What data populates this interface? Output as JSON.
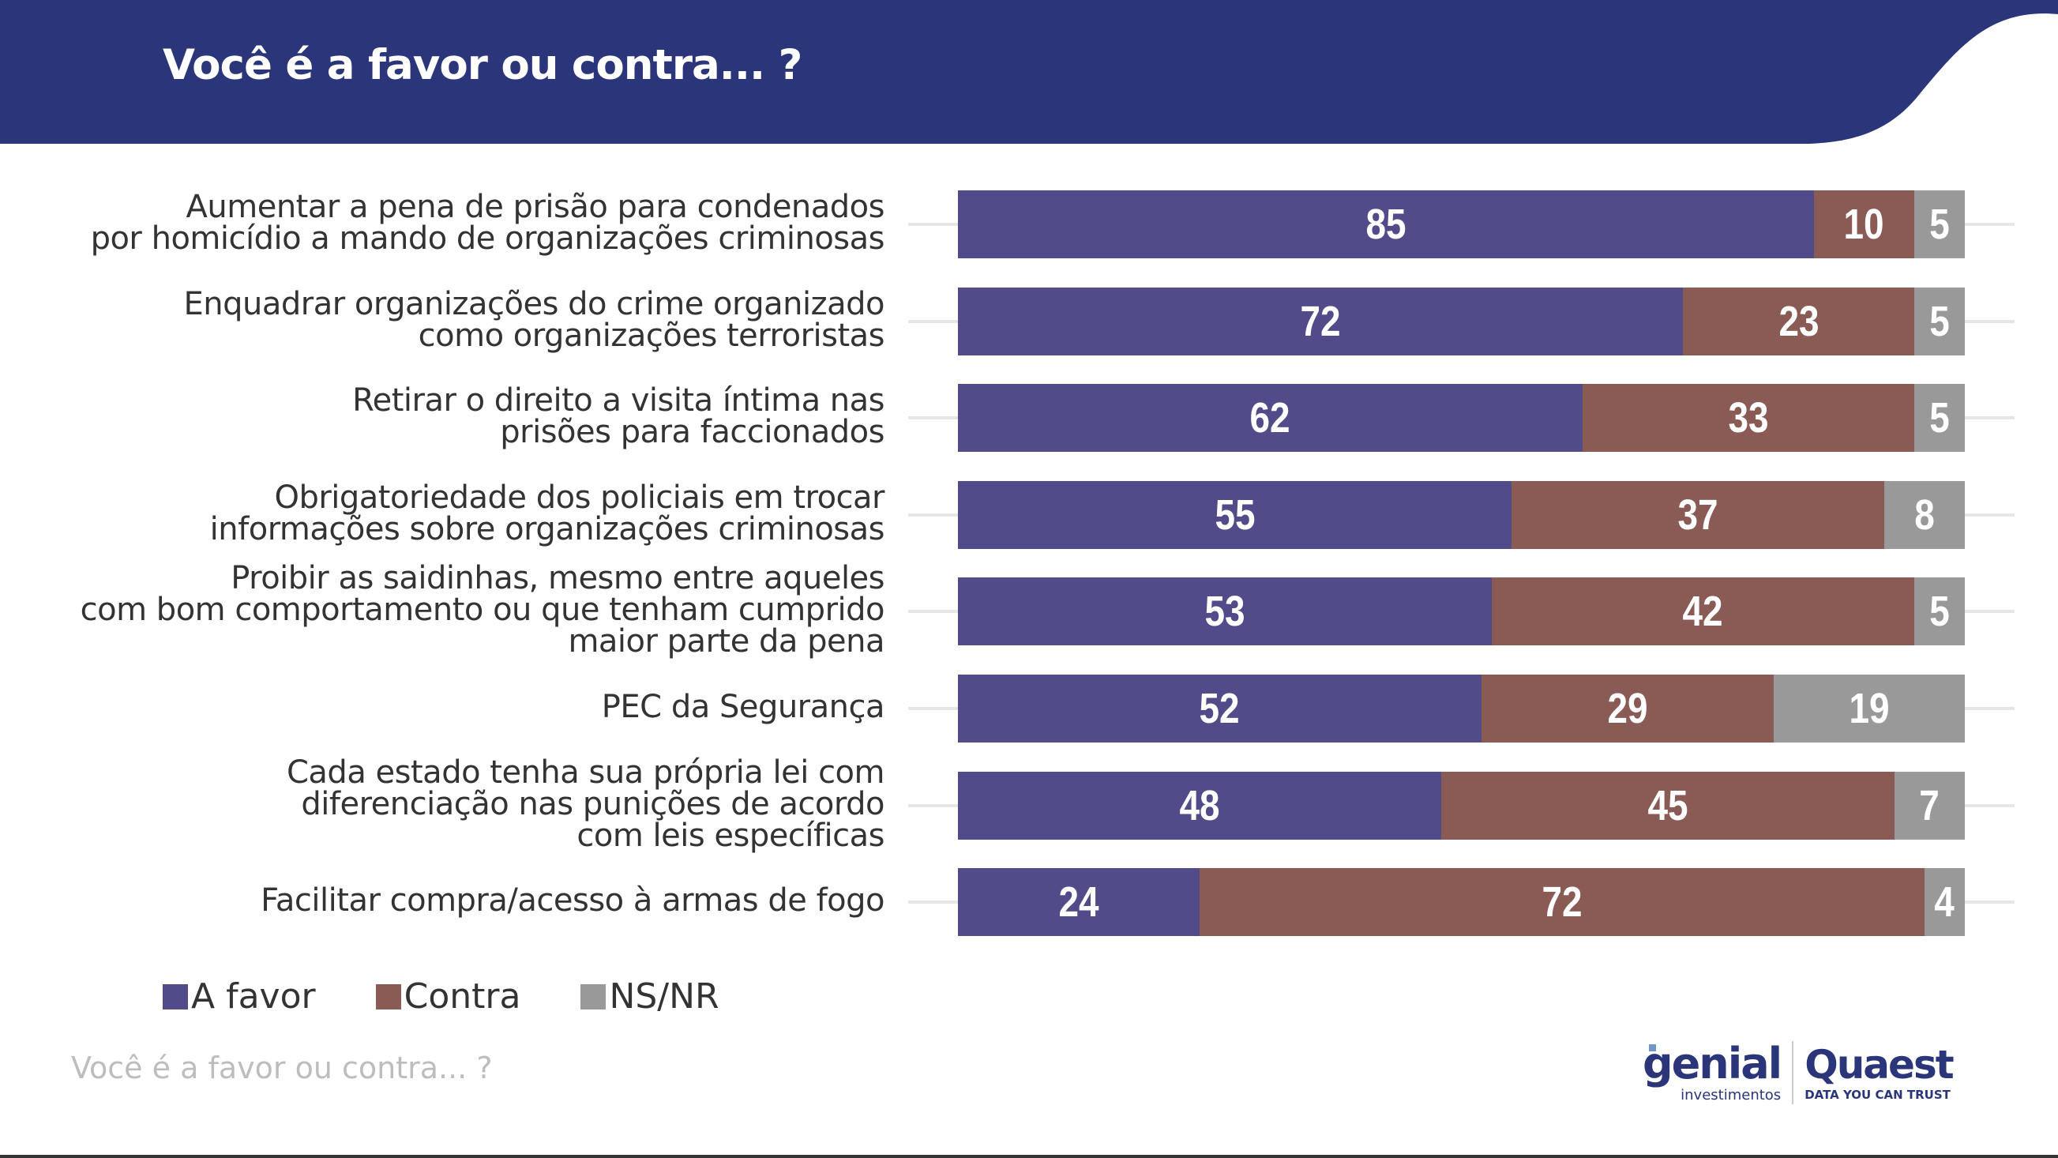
{
  "header": {
    "title": "Você é a favor ou contra... ?"
  },
  "colors": {
    "header": "#2b3579",
    "a_favor": "#514c89",
    "contra": "#8a5b55",
    "ns_nr": "#999999"
  },
  "chart_data": {
    "type": "bar",
    "orientation": "horizontal",
    "stacked": true,
    "title": "Você é a favor ou contra... ?",
    "xlim": [
      0,
      100
    ],
    "legend_placement": "bottom-left",
    "grid": false,
    "categories": [
      [
        "Aumentar a pena de prisão para condenados",
        "por homicídio a mando de organizações criminosas"
      ],
      [
        "Enquadrar organizações do crime organizado",
        "como organizações terroristas"
      ],
      [
        "Retirar o direito a visita íntima nas",
        "prisões para faccionados"
      ],
      [
        "Obrigatoriedade dos policiais em trocar",
        "informações sobre organizações criminosas"
      ],
      [
        "Proibir as saidinhas, mesmo entre aqueles",
        "com bom comportamento ou que tenham cumprido",
        "maior parte da pena"
      ],
      [
        "PEC da Segurança"
      ],
      [
        "Cada estado tenha sua própria lei com",
        "diferenciação nas punições de acordo",
        "com leis específicas"
      ],
      [
        "Facilitar compra/acesso à armas de fogo"
      ]
    ],
    "series": [
      {
        "name": "A favor",
        "values": [
          85,
          72,
          62,
          55,
          53,
          52,
          48,
          24
        ]
      },
      {
        "name": "Contra",
        "values": [
          10,
          23,
          33,
          37,
          42,
          29,
          45,
          72
        ]
      },
      {
        "name": "NS/NR",
        "values": [
          5,
          5,
          5,
          8,
          5,
          19,
          7,
          4
        ]
      }
    ]
  },
  "footer": {
    "question": "Você é a favor ou contra... ?"
  },
  "logos": {
    "genial": "genial",
    "genial_sub": "investimentos",
    "quaest": "Quaest",
    "quaest_tagline": "DATA YOU CAN TRUST"
  }
}
